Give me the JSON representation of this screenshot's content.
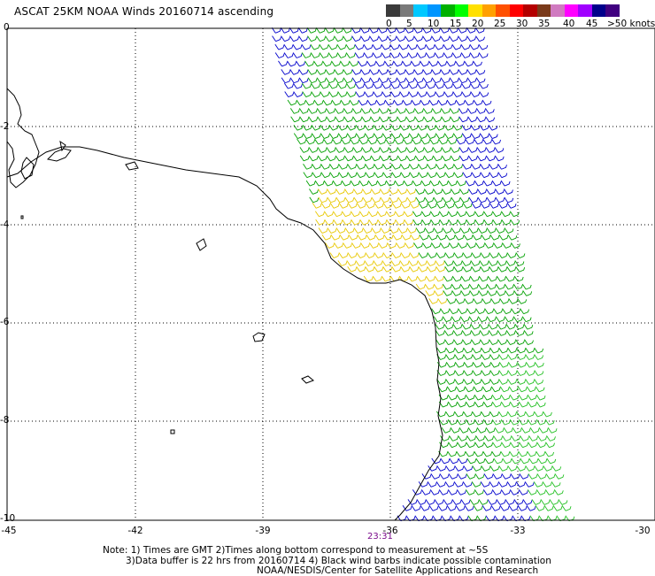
{
  "title": "ASCAT 25KM NOAA Winds 20160714 ascending",
  "speed_scale": {
    "labels": [
      "0",
      "5",
      "10",
      "15",
      "20",
      "25",
      "30",
      "35",
      "40",
      "45",
      ">50 knots"
    ],
    "colors": [
      "#3a3a3a",
      "#7a7a7a",
      "#00c8ff",
      "#0096ff",
      "#00b000",
      "#00ff00",
      "#ffe000",
      "#ffa000",
      "#ff5000",
      "#ff0000",
      "#b40000",
      "#7a3a1a",
      "#d07ac0",
      "#ff00ff",
      "#a000ff",
      "#00008b",
      "#400080"
    ]
  },
  "axes": {
    "lat_labels": [
      "0",
      "-2",
      "-4",
      "-6",
      "-8",
      "-10"
    ],
    "lon_labels": [
      "-45",
      "-42",
      "-39",
      "-36",
      "-33",
      "-30"
    ]
  },
  "pass_time": "23:31",
  "notes": {
    "line1": "Note: 1) Times are GMT 2)Times along bottom correspond to measurement at ~5S",
    "line2": "3)Data buffer is 22 hrs from 20160714 4) Black wind barbs indicate possible contamination",
    "line3": "NOAA/NESDIS/Center for Satellite Applications and Research"
  },
  "colors": {
    "barb_blue": "#0000cc",
    "barb_green": "#00a000",
    "barb_lightgreen": "#22c022",
    "barb_yellow": "#e8c800",
    "coast": "#000000",
    "grid": "#000000"
  }
}
